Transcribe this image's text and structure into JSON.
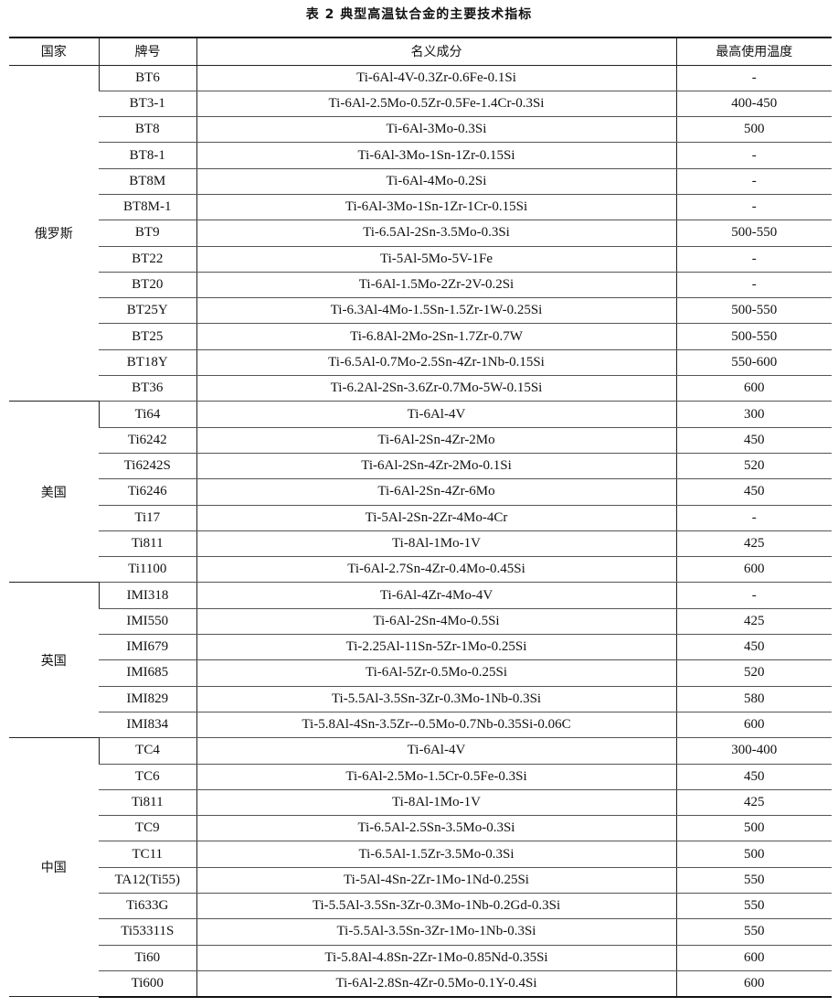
{
  "title": "表 2   典型高温钛合金的主要技术指标",
  "headers": [
    "国家",
    "牌号",
    "名义成分",
    "最高使用温度"
  ],
  "groups": [
    {
      "country": "俄罗斯",
      "rows": [
        [
          "BT6",
          "Ti-6Al-4V-0.3Zr-0.6Fe-0.1Si",
          "-"
        ],
        [
          "BT3-1",
          "Ti-6Al-2.5Mo-0.5Zr-0.5Fe-1.4Cr-0.3Si",
          "400-450"
        ],
        [
          "BT8",
          "Ti-6Al-3Mo-0.3Si",
          "500"
        ],
        [
          "BT8-1",
          "Ti-6Al-3Mo-1Sn-1Zr-0.15Si",
          "-"
        ],
        [
          "BT8M",
          "Ti-6Al-4Mo-0.2Si",
          "-"
        ],
        [
          "BT8M-1",
          "Ti-6Al-3Mo-1Sn-1Zr-1Cr-0.15Si",
          "-"
        ],
        [
          "BT9",
          "Ti-6.5Al-2Sn-3.5Mo-0.3Si",
          "500-550"
        ],
        [
          "BT22",
          "Ti-5Al-5Mo-5V-1Fe",
          "-"
        ],
        [
          "BT20",
          "Ti-6Al-1.5Mo-2Zr-2V-0.2Si",
          "-"
        ],
        [
          "BT25Y",
          "Ti-6.3Al-4Mo-1.5Sn-1.5Zr-1W-0.25Si",
          "500-550"
        ],
        [
          "BT25",
          "Ti-6.8Al-2Mo-2Sn-1.7Zr-0.7W",
          "500-550"
        ],
        [
          "BT18Y",
          "Ti-6.5Al-0.7Mo-2.5Sn-4Zr-1Nb-0.15Si",
          "550-600"
        ],
        [
          "BT36",
          "Ti-6.2Al-2Sn-3.6Zr-0.7Mo-5W-0.15Si",
          "600"
        ]
      ]
    },
    {
      "country": "美国",
      "rows": [
        [
          "Ti64",
          "Ti-6Al-4V",
          "300"
        ],
        [
          "Ti6242",
          "Ti-6Al-2Sn-4Zr-2Mo",
          "450"
        ],
        [
          "Ti6242S",
          "Ti-6Al-2Sn-4Zr-2Mo-0.1Si",
          "520"
        ],
        [
          "Ti6246",
          "Ti-6Al-2Sn-4Zr-6Mo",
          "450"
        ],
        [
          "Ti17",
          "Ti-5Al-2Sn-2Zr-4Mo-4Cr",
          "-"
        ],
        [
          "Ti811",
          "Ti-8Al-1Mo-1V",
          "425"
        ],
        [
          "Ti1100",
          "Ti-6Al-2.7Sn-4Zr-0.4Mo-0.45Si",
          "600"
        ]
      ]
    },
    {
      "country": "英国",
      "rows": [
        [
          "IMI318",
          "Ti-6Al-4Zr-4Mo-4V",
          "-"
        ],
        [
          "IMI550",
          "Ti-6Al-2Sn-4Mo-0.5Si",
          "425"
        ],
        [
          "IMI679",
          "Ti-2.25Al-11Sn-5Zr-1Mo-0.25Si",
          "450"
        ],
        [
          "IMI685",
          "Ti-6Al-5Zr-0.5Mo-0.25Si",
          "520"
        ],
        [
          "IMI829",
          "Ti-5.5Al-3.5Sn-3Zr-0.3Mo-1Nb-0.3Si",
          "580"
        ],
        [
          "IMI834",
          "Ti-5.8Al-4Sn-3.5Zr--0.5Mo-0.7Nb-0.35Si-0.06C",
          "600"
        ]
      ]
    },
    {
      "country": "中国",
      "rows": [
        [
          "TC4",
          "Ti-6Al-4V",
          "300-400"
        ],
        [
          "TC6",
          "Ti-6Al-2.5Mo-1.5Cr-0.5Fe-0.3Si",
          "450"
        ],
        [
          "Ti811",
          "Ti-8Al-1Mo-1V",
          "425"
        ],
        [
          "TC9",
          "Ti-6.5Al-2.5Sn-3.5Mo-0.3Si",
          "500"
        ],
        [
          "TC11",
          "Ti-6.5Al-1.5Zr-3.5Mo-0.3Si",
          "500"
        ],
        [
          "TA12(Ti55)",
          "Ti-5Al-4Sn-2Zr-1Mo-1Nd-0.25Si",
          "550"
        ],
        [
          "Ti633G",
          "Ti-5.5Al-3.5Sn-3Zr-0.3Mo-1Nb-0.2Gd-0.3Si",
          "550"
        ],
        [
          "Ti53311S",
          "Ti-5.5Al-3.5Sn-3Zr-1Mo-1Nb-0.3Si",
          "550"
        ],
        [
          "Ti60",
          "Ti-5.8Al-4.8Sn-2Zr-1Mo-0.85Nd-0.35Si",
          "600"
        ],
        [
          "Ti600",
          "Ti-6Al-2.8Sn-4Zr-0.5Mo-0.1Y-0.4Si",
          "600"
        ]
      ]
    }
  ]
}
